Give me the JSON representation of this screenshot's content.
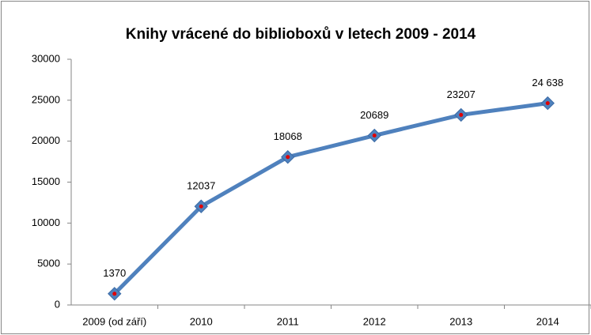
{
  "chart_data": {
    "type": "line",
    "title": "Knihy vrácené do biblioboxů v letech 2009 - 2014",
    "categories": [
      "2009 (od září)",
      "2010",
      "2011",
      "2012",
      "2013",
      "2014"
    ],
    "series": [
      {
        "color": "#4f81bd",
        "marker_color": "#e00000",
        "values": [
          1370,
          12037,
          18068,
          20689,
          23207,
          24638
        ],
        "value_labels": [
          "1370",
          "12037",
          "18068",
          "20689",
          "23207",
          "24 638"
        ]
      }
    ],
    "ylim": [
      0,
      30000
    ],
    "yticks": [
      0,
      5000,
      10000,
      15000,
      20000,
      25000,
      30000
    ],
    "grid": false
  }
}
